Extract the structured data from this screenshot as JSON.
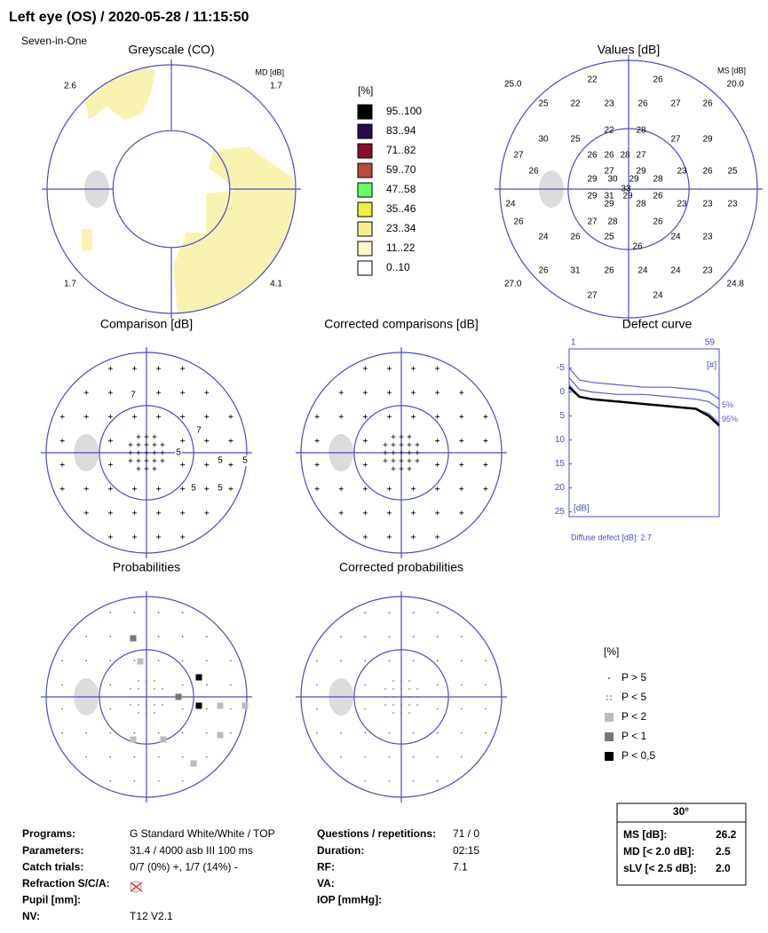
{
  "header": {
    "title": "Left eye (OS) / 2020-05-28 / 11:15:50",
    "subtitle": "Seven-in-One"
  },
  "greyscale": {
    "title": "Greyscale (CO)",
    "md_label": "MD [dB]",
    "corners": [
      "2.6",
      "1.7",
      "1.7",
      "4.1"
    ]
  },
  "greyscale_legend": {
    "unit": "[%]",
    "items": [
      {
        "label": "95..100",
        "color": "#000000"
      },
      {
        "label": "83..94",
        "color": "#2b0b4d"
      },
      {
        "label": "71..82",
        "color": "#8c0c2c"
      },
      {
        "label": "59..70",
        "color": "#b84c3a"
      },
      {
        "label": "47..58",
        "color": "#66ff66"
      },
      {
        "label": "35..46",
        "color": "#f0f040"
      },
      {
        "label": "23..34",
        "color": "#f5ef8c"
      },
      {
        "label": "11..22",
        "color": "#fbf7c8"
      },
      {
        "label": "0..10",
        "color": "#ffffff"
      }
    ]
  },
  "values": {
    "title": "Values [dB]",
    "ms_label": "MS [dB]",
    "corners": [
      "25.0",
      "20.0",
      "27.0",
      "24.8"
    ],
    "points": [
      "22",
      "26",
      "25",
      "22",
      "23",
      "26",
      "27",
      "26",
      "22",
      "28",
      "30",
      "25",
      "27",
      "29",
      "27",
      "26",
      "26",
      "28",
      "27",
      "26",
      "27",
      "29",
      "23",
      "26",
      "25",
      "29",
      "30",
      "29",
      "28",
      "33",
      "29",
      "31",
      "29",
      "26",
      "24",
      "29",
      "28",
      "23",
      "23",
      "23",
      "26",
      "27",
      "28",
      "26",
      "24",
      "26",
      "25",
      "24",
      "23",
      "26",
      "26",
      "31",
      "26",
      "24",
      "24",
      "23",
      "27",
      "24"
    ]
  },
  "comparison": {
    "title": "Comparison [dB]",
    "points": [
      "7",
      "7",
      "5",
      "5",
      "5",
      "5",
      "5"
    ]
  },
  "corrected_comparisons": {
    "title": "Corrected comparisons [dB]"
  },
  "defect_curve": {
    "title": "Defect curve",
    "x_start": "1",
    "x_end": "59",
    "x_unit": "[#]",
    "y_unit": "[dB]",
    "xlim": [
      1,
      59
    ],
    "ylim": [
      -9,
      26
    ],
    "yticks": [
      -5,
      0,
      5,
      10,
      15,
      20,
      25
    ],
    "x": [
      1,
      5,
      10,
      20,
      30,
      40,
      50,
      55,
      59
    ],
    "series": [
      {
        "color": "#5a5ad8",
        "values": [
          -5,
          -2.5,
          -2,
          -1.5,
          -1,
          -1,
          -0.5,
          0,
          1.5
        ]
      },
      {
        "name": "5%",
        "color": "#5a5ad8",
        "values": [
          -3,
          -0.5,
          0,
          0.5,
          0.5,
          1,
          1.5,
          2,
          3.5
        ]
      },
      {
        "name": "95%",
        "color": "#5a5ad8",
        "values": [
          -1.5,
          1,
          1.5,
          2,
          2.5,
          3,
          3.5,
          4.5,
          6.5
        ]
      },
      {
        "color": "#000000",
        "values": [
          -1,
          1,
          1.5,
          2,
          2.5,
          3,
          3.5,
          5,
          7
        ]
      }
    ],
    "footer": "Diffuse defect [dB]:  2.7"
  },
  "probabilities": {
    "title": "Probabilities"
  },
  "corrected_probabilities": {
    "title": "Corrected probabilities"
  },
  "probability_legend": {
    "unit": "[%]",
    "items": [
      "P > 5",
      "P < 5",
      "P < 2",
      "P < 1",
      "P < 0,5"
    ]
  },
  "info_left": [
    {
      "label": "Programs:",
      "value": "G Standard   White/White / TOP"
    },
    {
      "label": "Parameters:",
      "value": "31.4  / 4000 asb III 100 ms"
    },
    {
      "label": "Catch trials:",
      "value": "0/7 (0%) +, 1/7 (14%) -"
    },
    {
      "label": "Refraction S/C/A:"
    },
    {
      "label": "Pupil [mm]:"
    },
    {
      "label": "NV:",
      "value": "T12 V2.1"
    }
  ],
  "info_right": [
    {
      "label": "Questions / repetitions:",
      "value": "71 / 0"
    },
    {
      "label": "Duration:",
      "value": "02:15"
    },
    {
      "label": "RF:",
      "value": "7.1"
    },
    {
      "label": "VA:"
    },
    {
      "label": "IOP [mmHg]:"
    }
  ],
  "summary": {
    "title": "30°",
    "rows": [
      {
        "label": "MS [dB]:",
        "value": "26.2"
      },
      {
        "label": "MD [< 2.0 dB]:",
        "value": "2.5"
      },
      {
        "label": "sLV [< 2.5 dB]:",
        "value": "2.0"
      }
    ]
  }
}
